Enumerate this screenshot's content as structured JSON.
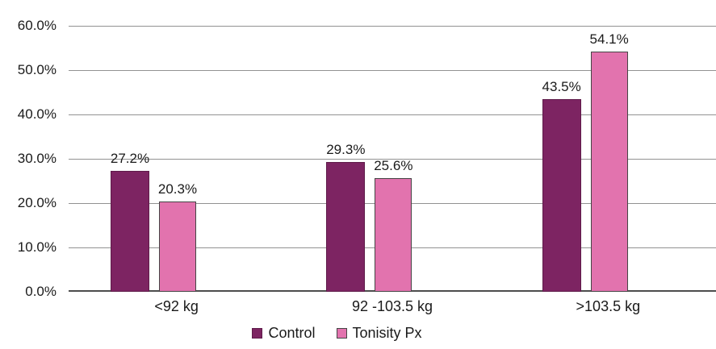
{
  "chart_data": {
    "type": "bar",
    "title": "",
    "xlabel": "",
    "ylabel": "",
    "categories": [
      "<92 kg",
      "92 -103.5 kg",
      ">103.5 kg"
    ],
    "series": [
      {
        "name": "Control",
        "color": "#7d2462",
        "values": [
          27.2,
          29.3,
          43.5
        ],
        "labels": [
          "27.2%",
          "29.3%",
          "43.5%"
        ]
      },
      {
        "name": "Tonisity Px",
        "color": "#e273ae",
        "values": [
          20.3,
          25.6,
          54.1
        ],
        "labels": [
          "20.3%",
          "25.6%",
          "54.1%"
        ]
      }
    ],
    "ylim": [
      0,
      60
    ],
    "ytick_step": 10,
    "ytick_labels": [
      "60.0%",
      "50.0%",
      "40.0%",
      "30.0%",
      "20.0%",
      "10.0%",
      "0.0%"
    ],
    "grid": true,
    "legend_position": "bottom"
  },
  "colors": {
    "gridline": "#929292",
    "axis_line": "#4d4d4d",
    "text": "#1a1a1a",
    "background": "#ffffff"
  }
}
